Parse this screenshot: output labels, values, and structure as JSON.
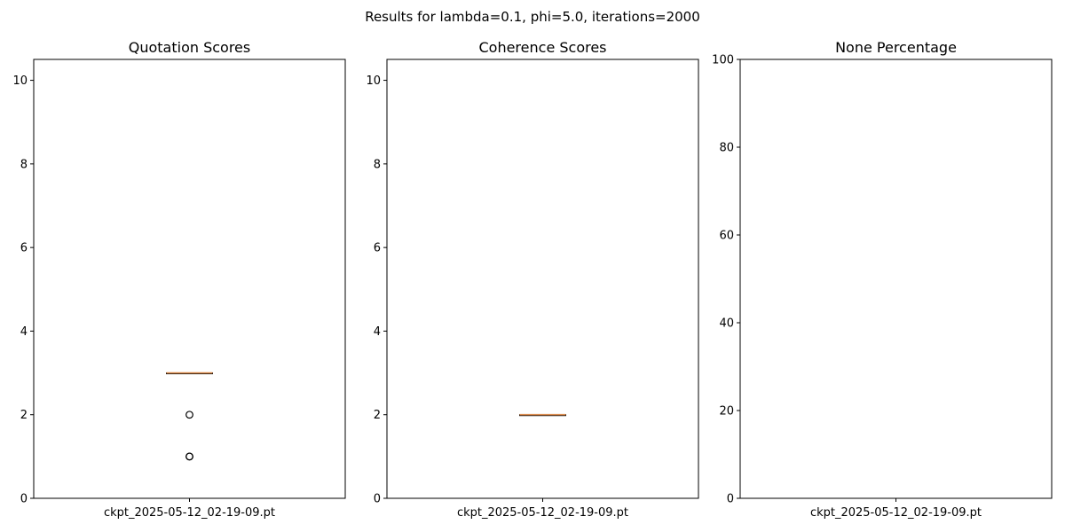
{
  "figure": {
    "suptitle": "Results for lambda=0.1, phi=5.0, iterations=2000"
  },
  "chart_data": [
    {
      "type": "box",
      "title": "Quotation Scores",
      "xlabel": "",
      "ylabel": "",
      "categories": [
        "ckpt_2025-05-12_02-19-09.pt"
      ],
      "ylim": [
        0,
        10.5
      ],
      "yticks": [
        0,
        2,
        4,
        6,
        8,
        10
      ],
      "grid": false,
      "boxes": [
        {
          "q1": 3,
          "median": 3,
          "q3": 3,
          "whisker_low": 3,
          "whisker_high": 3,
          "outliers": [
            2,
            1,
            1
          ]
        }
      ]
    },
    {
      "type": "box",
      "title": "Coherence Scores",
      "xlabel": "",
      "ylabel": "",
      "categories": [
        "ckpt_2025-05-12_02-19-09.pt"
      ],
      "ylim": [
        0,
        10.5
      ],
      "yticks": [
        0,
        2,
        4,
        6,
        8,
        10
      ],
      "grid": false,
      "boxes": [
        {
          "q1": 2,
          "median": 2,
          "q3": 2,
          "whisker_low": 2,
          "whisker_high": 2,
          "outliers": []
        }
      ]
    },
    {
      "type": "bar",
      "title": "None Percentage",
      "xlabel": "",
      "ylabel": "",
      "categories": [
        "ckpt_2025-05-12_02-19-09.pt"
      ],
      "values": [
        0
      ],
      "ylim": [
        0,
        100
      ],
      "yticks": [
        0,
        20,
        40,
        60,
        80,
        100
      ],
      "grid": false
    }
  ],
  "colors": {
    "box": "#000000",
    "median": "#d98a4d",
    "bar": "#1f77b4"
  }
}
